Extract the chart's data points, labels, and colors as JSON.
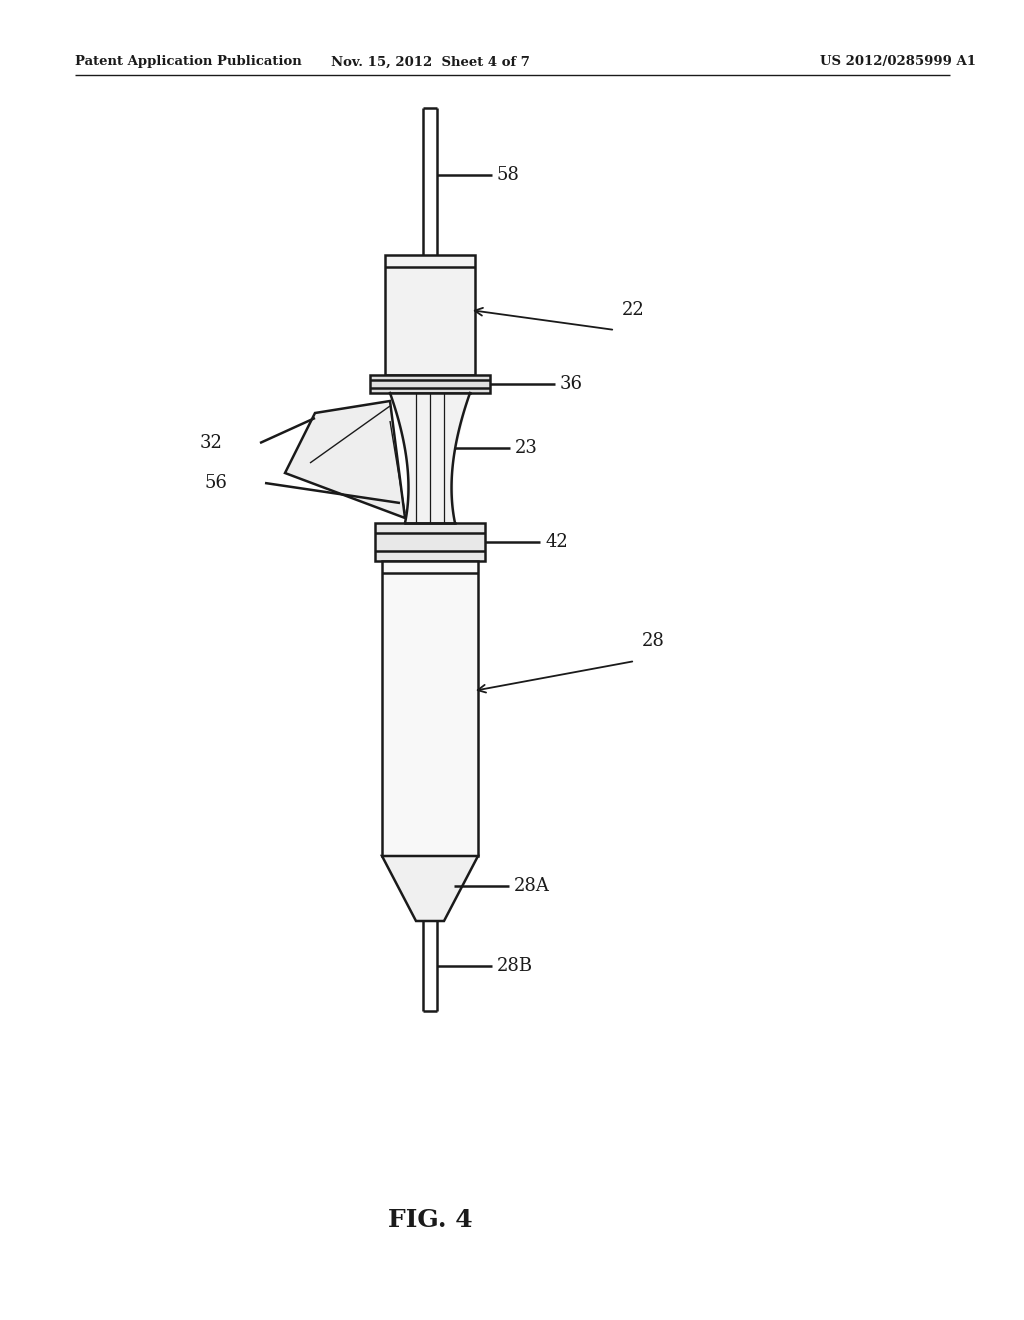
{
  "bg_color": "#ffffff",
  "line_color": "#1a1a1a",
  "header_left": "Patent Application Publication",
  "header_mid": "Nov. 15, 2012  Sheet 4 of 7",
  "header_right": "US 2012/0285999 A1",
  "fig_label": "FIG. 4"
}
